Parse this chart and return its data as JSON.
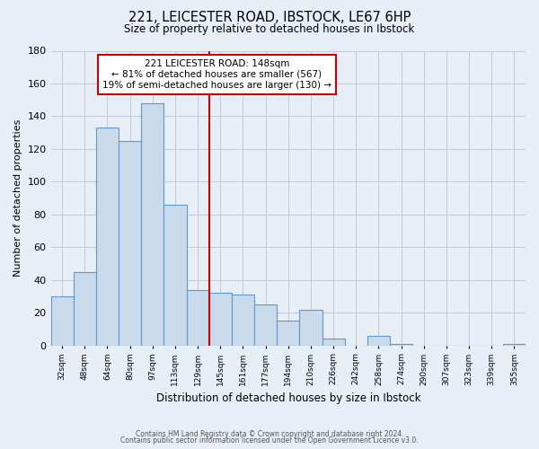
{
  "title": "221, LEICESTER ROAD, IBSTOCK, LE67 6HP",
  "subtitle": "Size of property relative to detached houses in Ibstock",
  "xlabel": "Distribution of detached houses by size in Ibstock",
  "ylabel": "Number of detached properties",
  "bin_labels": [
    "32sqm",
    "48sqm",
    "64sqm",
    "80sqm",
    "97sqm",
    "113sqm",
    "129sqm",
    "145sqm",
    "161sqm",
    "177sqm",
    "194sqm",
    "210sqm",
    "226sqm",
    "242sqm",
    "258sqm",
    "274sqm",
    "290sqm",
    "307sqm",
    "323sqm",
    "339sqm",
    "355sqm"
  ],
  "bar_values": [
    30,
    45,
    133,
    125,
    148,
    86,
    34,
    32,
    31,
    25,
    15,
    22,
    4,
    0,
    6,
    1,
    0,
    0,
    0,
    0,
    1
  ],
  "bar_color": "#c9daea",
  "bar_edge_color": "#5b9bd5",
  "vline_color": "#cc0000",
  "annotation_line1": "221 LEICESTER ROAD: 148sqm",
  "annotation_line2": "← 81% of detached houses are smaller (567)",
  "annotation_line3": "19% of semi-detached houses are larger (130) →",
  "annotation_box_color": "#ffffff",
  "annotation_box_edge": "#cc0000",
  "ylim": [
    0,
    180
  ],
  "yticks": [
    0,
    20,
    40,
    60,
    80,
    100,
    120,
    140,
    160,
    180
  ],
  "footer1": "Contains HM Land Registry data © Crown copyright and database right 2024.",
  "footer2": "Contains public sector information licensed under the Open Government Licence v3.0.",
  "bg_color": "#e8eef6",
  "plot_bg_color": "#e8eef6",
  "grid_color": "#c0cad8"
}
